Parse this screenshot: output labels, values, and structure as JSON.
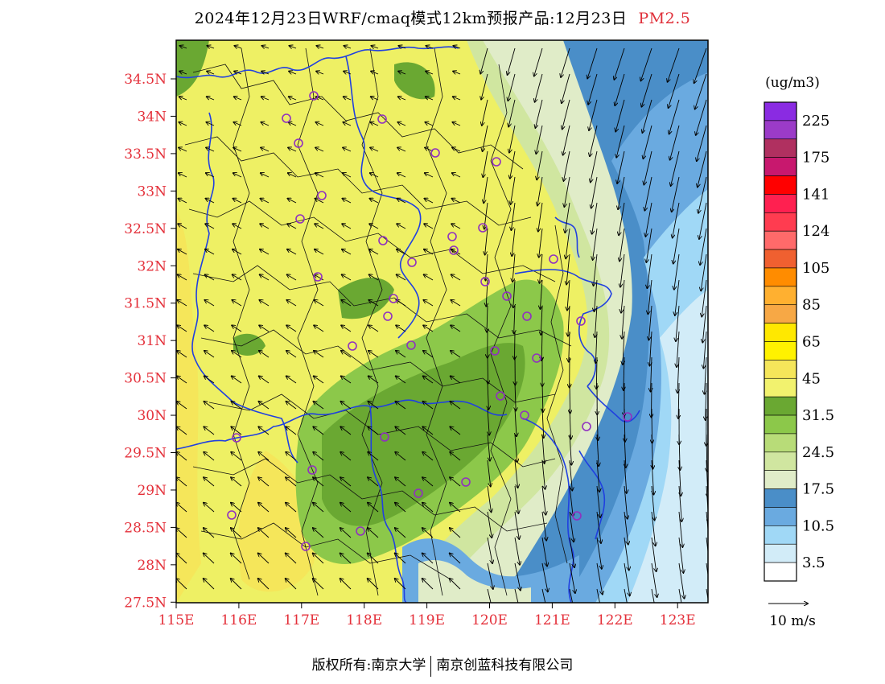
{
  "title": "2024年12月23日WRF/cmaq模式12km预报产品:12月23日",
  "pollutant": "PM2.5",
  "unit": "(ug/m3)",
  "wind_scale_label": "10 m/s",
  "footer": {
    "left": "版权所有:南京大学",
    "right": "南京创蓝科技有限公司"
  },
  "lat_ticks": [
    "34.5N",
    "34N",
    "33.5N",
    "33N",
    "32.5N",
    "32N",
    "31.5N",
    "31N",
    "30.5N",
    "30N",
    "29.5N",
    "29N",
    "28.5N",
    "28N",
    "27.5N"
  ],
  "lon_ticks": [
    "115E",
    "116E",
    "117E",
    "118E",
    "119E",
    "120E",
    "121E",
    "122E",
    "123E"
  ],
  "colorbar": {
    "labels": [
      "225",
      "175",
      "141",
      "124",
      "105",
      "85",
      "65",
      "45",
      "31.5",
      "24.5",
      "17.5",
      "10.5",
      "3.5"
    ],
    "colors": [
      "#8a2be2",
      "#9b3bc8",
      "#b03060",
      "#c8186e",
      "#ff0000",
      "#ff2050",
      "#ff3c50",
      "#ff6a6a",
      "#f06030",
      "#ff8c00",
      "#ffb030",
      "#f7a845",
      "#ffe800",
      "#fff200",
      "#f5e65a",
      "#f2f26e",
      "#6aa832",
      "#8cc84a",
      "#b8dc78",
      "#d0e6a0",
      "#e0ecc8",
      "#4a8ec8",
      "#6aaae0",
      "#a0d8f6",
      "#d2ecf8",
      "#ffffff"
    ]
  },
  "colors": {
    "background_yellow": "#eef064",
    "ocean_blue": "#4a8ec8",
    "boundary_blue": "#2040e0",
    "axis_label_red": "#e4303a"
  },
  "city_marker_color": "#9030c0"
}
